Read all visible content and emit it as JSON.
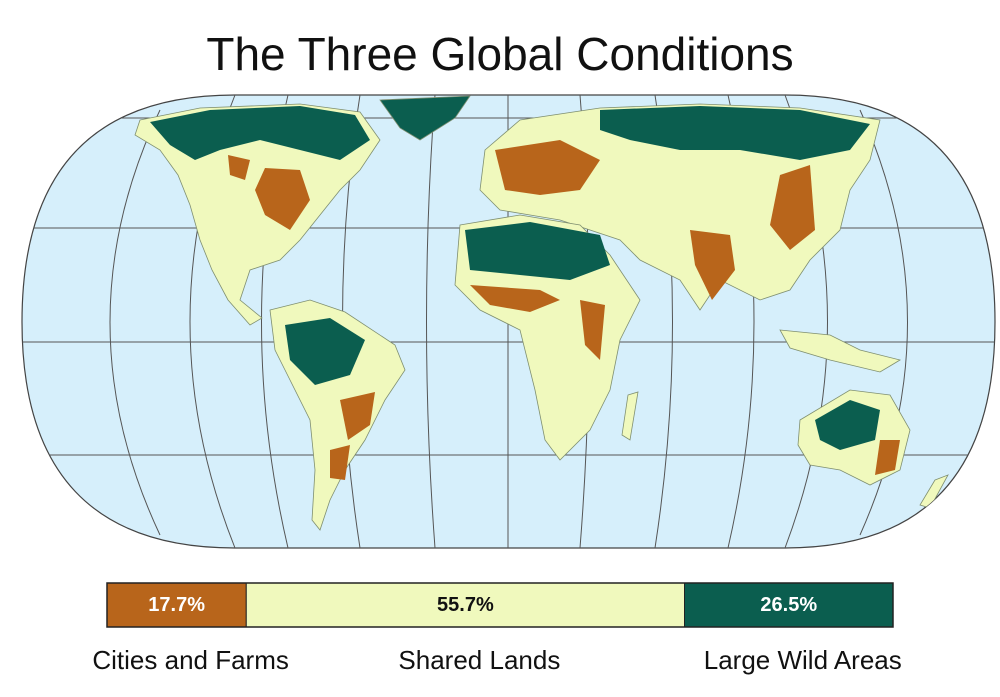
{
  "chart_data": {
    "type": "stacked-bar",
    "title": "The Three Global Conditions",
    "series": [
      {
        "name": "Cities and Farms",
        "color": "#b8651b",
        "values": [
          17.7
        ],
        "value_labels": [
          "17.7%"
        ]
      },
      {
        "name": "Shared Lands",
        "color": "#f0f9bd",
        "values": [
          55.7
        ],
        "value_labels": [
          "55.7%"
        ]
      },
      {
        "name": "Large Wild Areas",
        "color": "#0b5e4f",
        "values": [
          26.5
        ],
        "value_labels": [
          "26.5%"
        ]
      }
    ]
  }
}
